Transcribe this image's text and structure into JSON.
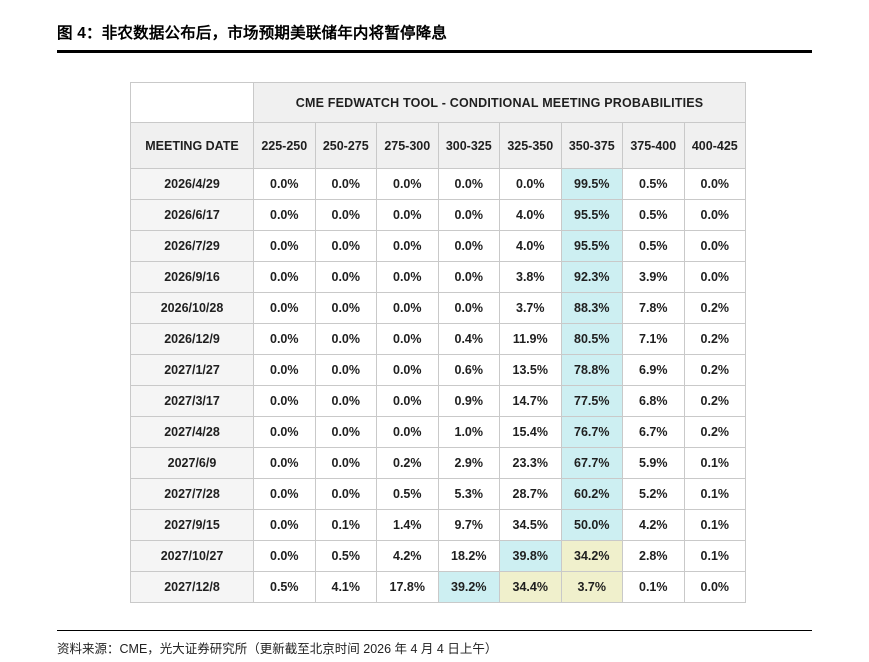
{
  "page": {
    "title": "图 4：非农数据公布后，市场预期美联储年内将暂停降息",
    "source": "资料来源：CME，光大证券研究所（更新截至北京时间 2026 年 4 月 4 日上午）"
  },
  "colors": {
    "highlight_cyan": "#cdeff2",
    "highlight_yellow": "#f0f0cc",
    "header_bg": "#f0f0f0",
    "border": "#c9c9c9"
  },
  "chart_data": {
    "type": "table",
    "title": "CME FEDWATCH TOOL - CONDITIONAL MEETING PROBABILITIES",
    "row_header": "MEETING DATE",
    "columns": [
      "225-250",
      "250-275",
      "275-300",
      "300-325",
      "325-350",
      "350-375",
      "375-400",
      "400-425"
    ],
    "rows": [
      {
        "date": "2026/4/29",
        "values": [
          "0.0%",
          "0.0%",
          "0.0%",
          "0.0%",
          "0.0%",
          "99.5%",
          "0.5%",
          "0.0%"
        ],
        "hl": [
          "",
          "",
          "",
          "",
          "",
          "c",
          "",
          ""
        ]
      },
      {
        "date": "2026/6/17",
        "values": [
          "0.0%",
          "0.0%",
          "0.0%",
          "0.0%",
          "4.0%",
          "95.5%",
          "0.5%",
          "0.0%"
        ],
        "hl": [
          "",
          "",
          "",
          "",
          "",
          "c",
          "",
          ""
        ]
      },
      {
        "date": "2026/7/29",
        "values": [
          "0.0%",
          "0.0%",
          "0.0%",
          "0.0%",
          "4.0%",
          "95.5%",
          "0.5%",
          "0.0%"
        ],
        "hl": [
          "",
          "",
          "",
          "",
          "",
          "c",
          "",
          ""
        ]
      },
      {
        "date": "2026/9/16",
        "values": [
          "0.0%",
          "0.0%",
          "0.0%",
          "0.0%",
          "3.8%",
          "92.3%",
          "3.9%",
          "0.0%"
        ],
        "hl": [
          "",
          "",
          "",
          "",
          "",
          "c",
          "",
          ""
        ]
      },
      {
        "date": "2026/10/28",
        "values": [
          "0.0%",
          "0.0%",
          "0.0%",
          "0.0%",
          "3.7%",
          "88.3%",
          "7.8%",
          "0.2%"
        ],
        "hl": [
          "",
          "",
          "",
          "",
          "",
          "c",
          "",
          ""
        ]
      },
      {
        "date": "2026/12/9",
        "values": [
          "0.0%",
          "0.0%",
          "0.0%",
          "0.4%",
          "11.9%",
          "80.5%",
          "7.1%",
          "0.2%"
        ],
        "hl": [
          "",
          "",
          "",
          "",
          "",
          "c",
          "",
          ""
        ]
      },
      {
        "date": "2027/1/27",
        "values": [
          "0.0%",
          "0.0%",
          "0.0%",
          "0.6%",
          "13.5%",
          "78.8%",
          "6.9%",
          "0.2%"
        ],
        "hl": [
          "",
          "",
          "",
          "",
          "",
          "c",
          "",
          ""
        ]
      },
      {
        "date": "2027/3/17",
        "values": [
          "0.0%",
          "0.0%",
          "0.0%",
          "0.9%",
          "14.7%",
          "77.5%",
          "6.8%",
          "0.2%"
        ],
        "hl": [
          "",
          "",
          "",
          "",
          "",
          "c",
          "",
          ""
        ]
      },
      {
        "date": "2027/4/28",
        "values": [
          "0.0%",
          "0.0%",
          "0.0%",
          "1.0%",
          "15.4%",
          "76.7%",
          "6.7%",
          "0.2%"
        ],
        "hl": [
          "",
          "",
          "",
          "",
          "",
          "c",
          "",
          ""
        ]
      },
      {
        "date": "2027/6/9",
        "values": [
          "0.0%",
          "0.0%",
          "0.2%",
          "2.9%",
          "23.3%",
          "67.7%",
          "5.9%",
          "0.1%"
        ],
        "hl": [
          "",
          "",
          "",
          "",
          "",
          "c",
          "",
          ""
        ]
      },
      {
        "date": "2027/7/28",
        "values": [
          "0.0%",
          "0.0%",
          "0.5%",
          "5.3%",
          "28.7%",
          "60.2%",
          "5.2%",
          "0.1%"
        ],
        "hl": [
          "",
          "",
          "",
          "",
          "",
          "c",
          "",
          ""
        ]
      },
      {
        "date": "2027/9/15",
        "values": [
          "0.0%",
          "0.1%",
          "1.4%",
          "9.7%",
          "34.5%",
          "50.0%",
          "4.2%",
          "0.1%"
        ],
        "hl": [
          "",
          "",
          "",
          "",
          "",
          "c",
          "",
          ""
        ]
      },
      {
        "date": "2027/10/27",
        "values": [
          "0.0%",
          "0.5%",
          "4.2%",
          "18.2%",
          "39.8%",
          "34.2%",
          "2.8%",
          "0.1%"
        ],
        "hl": [
          "",
          "",
          "",
          "",
          "c",
          "y",
          "",
          ""
        ]
      },
      {
        "date": "2027/12/8",
        "values": [
          "0.5%",
          "4.1%",
          "17.8%",
          "39.2%",
          "34.4%",
          "3.7%",
          "0.1%",
          "0.0%"
        ],
        "hl": [
          "",
          "",
          "",
          "c",
          "y",
          "y",
          "",
          ""
        ]
      }
    ]
  }
}
